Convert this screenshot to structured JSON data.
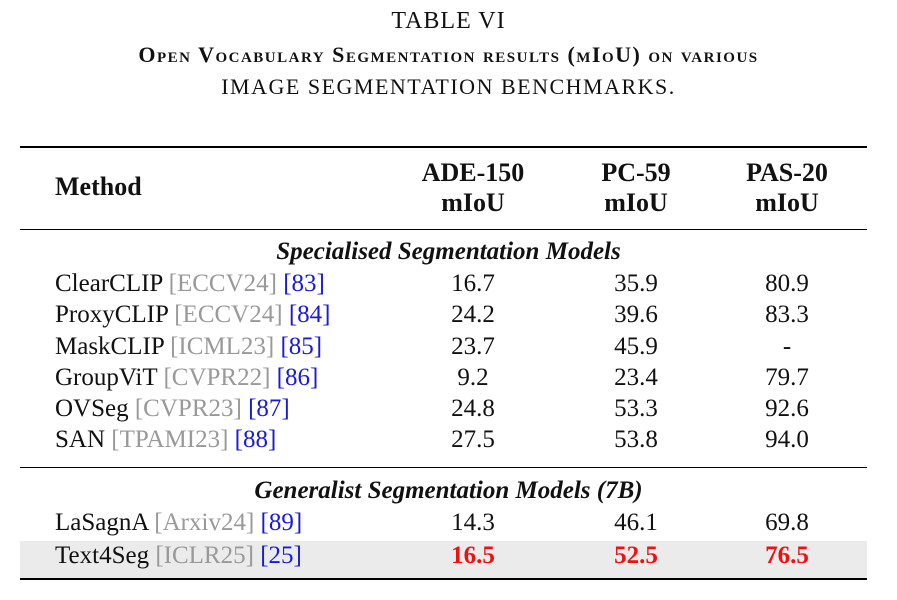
{
  "caption": {
    "line1": "TABLE VI",
    "line2": "Open Vocabulary Segmentation results (mIoU) on various",
    "line3": "image segmentation benchmarks."
  },
  "headers": {
    "method": "Method",
    "col1_line1": "ADE-150",
    "col1_line2": "mIoU",
    "col2_line1": "PC-59",
    "col2_line2": "mIoU",
    "col3_line1": "PAS-20",
    "col3_line2": "mIoU"
  },
  "sections": [
    {
      "title": "Specialised Segmentation Models",
      "rows": [
        {
          "method": "ClearCLIP",
          "venue": "[ECCV24]",
          "ref": "[83]",
          "ade": "16.7",
          "pc": "35.9",
          "pas": "80.9"
        },
        {
          "method": "ProxyCLIP",
          "venue": "[ECCV24]",
          "ref": "[84]",
          "ade": "24.2",
          "pc": "39.6",
          "pas": "83.3"
        },
        {
          "method": "MaskCLIP",
          "venue": "[ICML23]",
          "ref": "[85]",
          "ade": "23.7",
          "pc": "45.9",
          "pas": "-"
        },
        {
          "method": "GroupViT",
          "venue": "[CVPR22]",
          "ref": "[86]",
          "ade": "9.2",
          "pc": "23.4",
          "pas": "79.7"
        },
        {
          "method": "OVSeg",
          "venue": "[CVPR23]",
          "ref": "[87]",
          "ade": "24.8",
          "pc": "53.3",
          "pas": "92.6"
        },
        {
          "method": "SAN",
          "venue": "[TPAMI23]",
          "ref": "[88]",
          "ade": "27.5",
          "pc": "53.8",
          "pas": "94.0"
        }
      ]
    },
    {
      "title": "Generalist Segmentation Models (7B)",
      "rows": [
        {
          "method": "LaSagnA",
          "venue": "[Arxiv24]",
          "ref": "[89]",
          "ade": "14.3",
          "pc": "46.1",
          "pas": "69.8"
        },
        {
          "method": "Text4Seg",
          "venue": "[ICLR25]",
          "ref": "[25]",
          "ade": "16.5",
          "pc": "52.5",
          "pas": "76.5"
        }
      ]
    }
  ],
  "colors": {
    "venue": "#999999",
    "ref": "#1a1ad6",
    "highlight_value": "#ee1111",
    "highlight_row": "#ebebeb"
  }
}
